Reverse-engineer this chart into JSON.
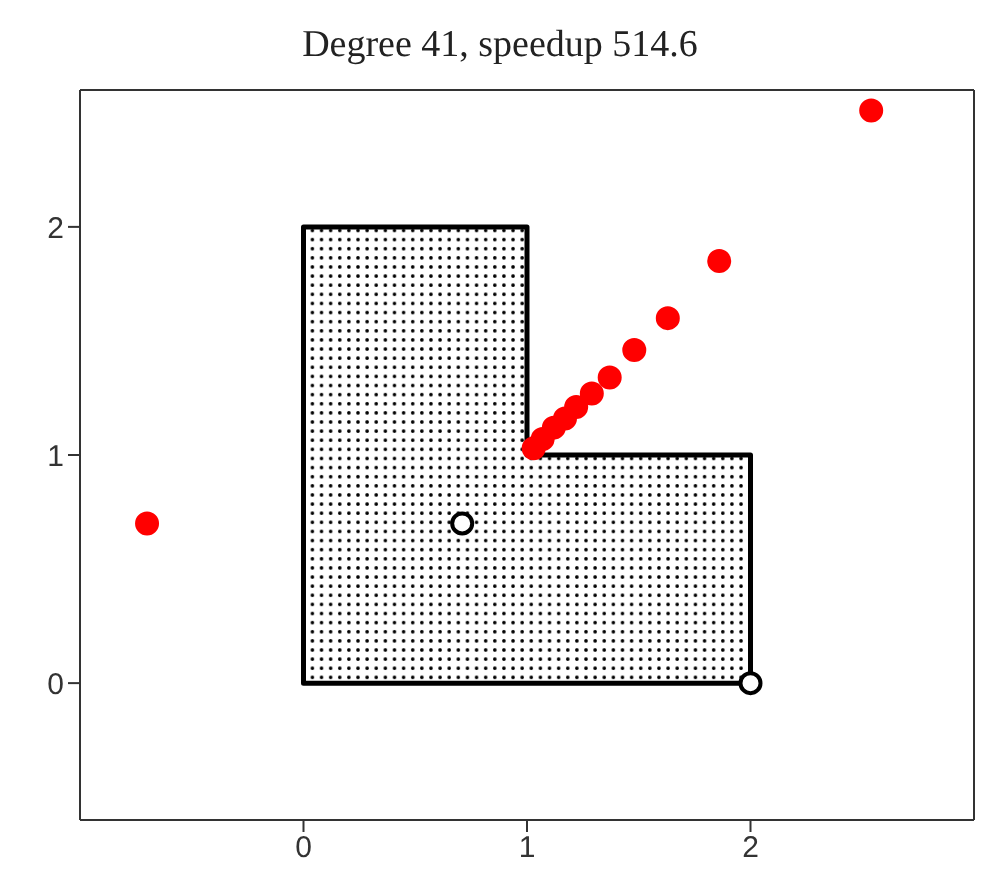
{
  "chart_data": {
    "type": "scatter",
    "title": "Degree 41, speedup 514.6",
    "xlim": [
      -1,
      3
    ],
    "ylim": [
      -0.6,
      2.6
    ],
    "xticks": [
      0,
      1,
      2
    ],
    "yticks": [
      0,
      1,
      2
    ],
    "grid": false,
    "legend": false,
    "series": [
      {
        "type": "area",
        "marker": "none",
        "color": "#000000",
        "x": [
          0,
          2,
          2,
          1,
          1,
          0,
          0
        ],
        "values": [
          0,
          0,
          1,
          1,
          2,
          2,
          0
        ]
      },
      {
        "marker": "circle",
        "color": "#ff0000",
        "x": [
          -0.7,
          1.03,
          1.07,
          1.12,
          1.17,
          1.22,
          1.29,
          1.37,
          1.48,
          1.63,
          1.86,
          2.54
        ],
        "values": [
          0.7,
          1.03,
          1.07,
          1.12,
          1.16,
          1.21,
          1.27,
          1.34,
          1.46,
          1.6,
          1.85,
          2.51
        ]
      },
      {
        "marker": "circle",
        "color": "#ffffff",
        "x": [
          0.71,
          2
        ],
        "values": [
          0.7,
          0
        ]
      }
    ]
  }
}
